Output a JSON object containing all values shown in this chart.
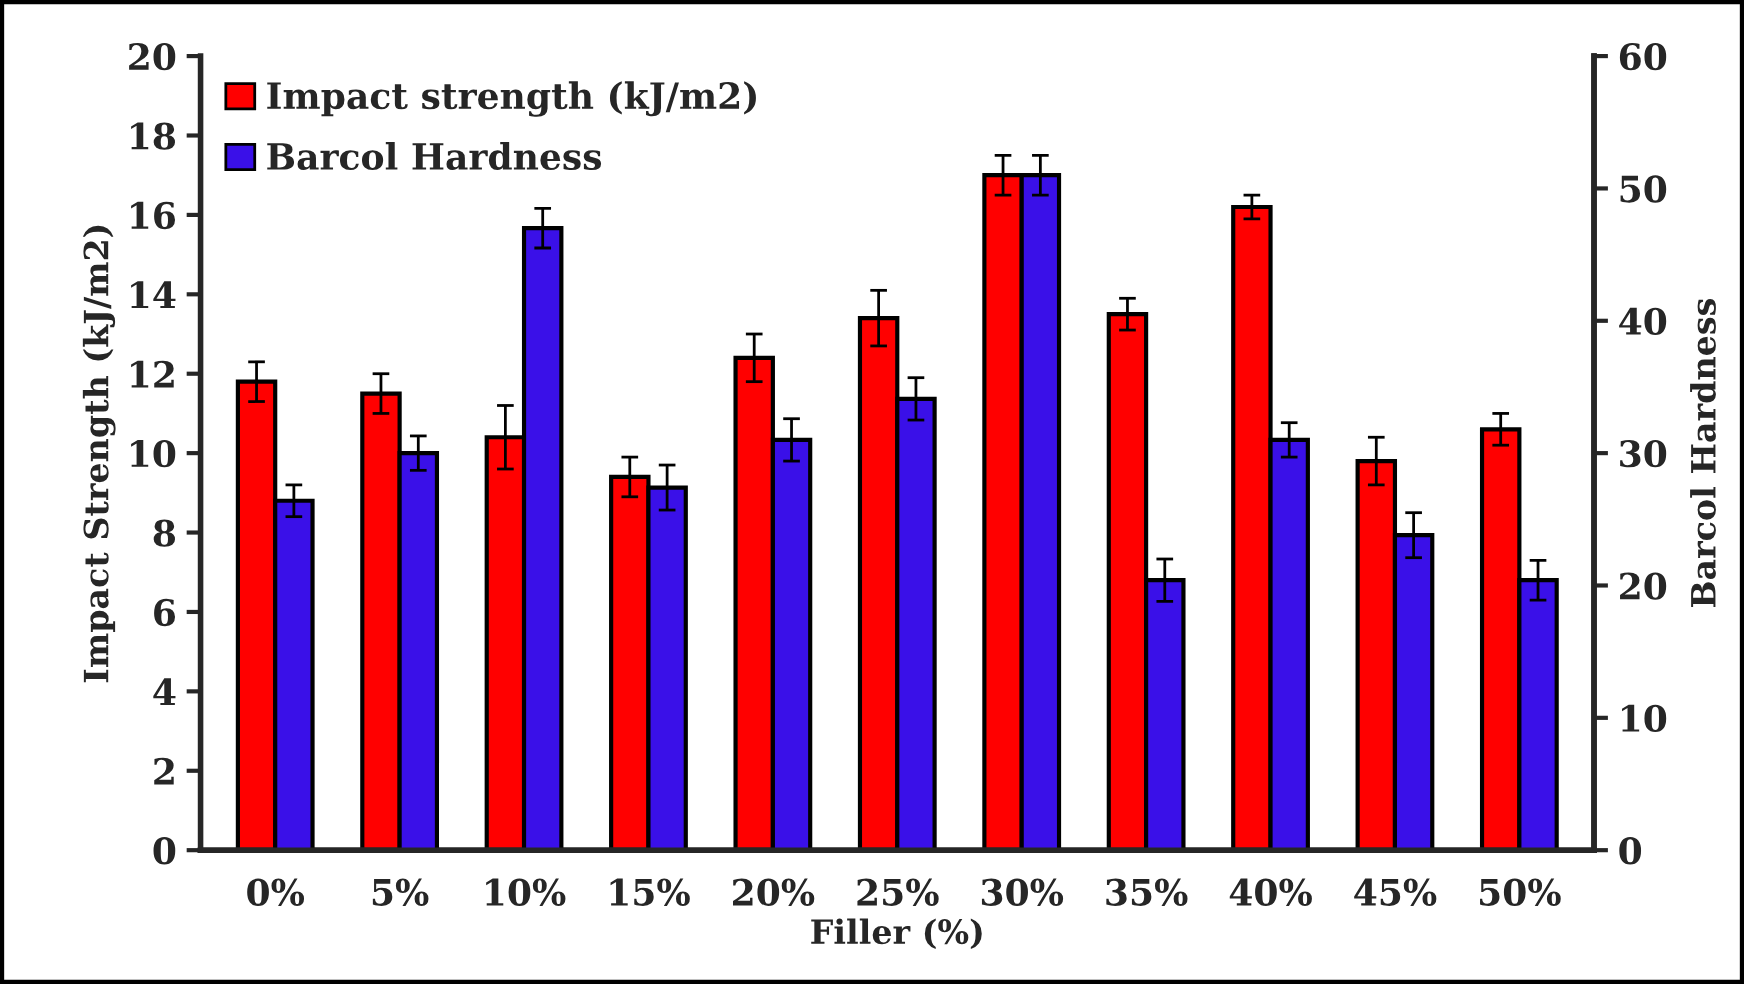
{
  "chart_data": {
    "type": "bar",
    "xlabel": "Filler (%)",
    "ylabel": "Impact Strength (kJ/m2)",
    "y2label": "Barcol Hardness",
    "categories": [
      "0%",
      "5%",
      "10%",
      "15%",
      "20%",
      "25%",
      "30%",
      "35%",
      "40%",
      "45%",
      "50%"
    ],
    "series": [
      {
        "name": "Impact strength (kJ/m2)",
        "color": "#ff0000",
        "values": [
          11.8,
          11.5,
          10.4,
          9.4,
          12.4,
          13.4,
          17.0,
          13.5,
          16.2,
          9.8,
          10.6
        ],
        "errors": [
          0.5,
          0.5,
          0.8,
          0.5,
          0.6,
          0.7,
          0.5,
          0.4,
          0.3,
          0.6,
          0.4
        ]
      },
      {
        "name": "Barcol Hardness",
        "color": "#3a10e8",
        "axis": "y2",
        "values": [
          26.4,
          30,
          47,
          27.4,
          31,
          34.1,
          51,
          20.4,
          31,
          23.8,
          20.4
        ],
        "errors": [
          1.2,
          1.3,
          1.5,
          1.7,
          1.6,
          1.6,
          1.5,
          1.6,
          1.3,
          1.7,
          1.5
        ]
      }
    ],
    "ylim": [
      0,
      20
    ],
    "yticks": [
      0,
      2,
      4,
      6,
      8,
      10,
      12,
      14,
      16,
      18,
      20
    ],
    "y2lim": [
      0,
      60
    ],
    "y2ticks": [
      0,
      10,
      20,
      30,
      40,
      50,
      60
    ],
    "legend": "top left",
    "grid": false
  }
}
